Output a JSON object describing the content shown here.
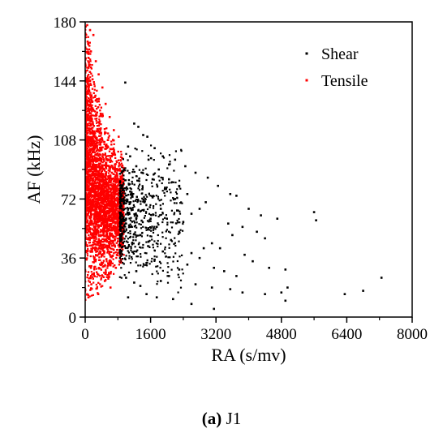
{
  "chart_data": {
    "type": "scatter",
    "title": "",
    "xlabel": "RA (s/mv)",
    "ylabel": "AF (kHz)",
    "xlim": [
      0,
      8000
    ],
    "ylim": [
      0,
      180
    ],
    "xticks": [
      "0",
      "1600",
      "3200",
      "4800",
      "6400",
      "8000"
    ],
    "yticks": [
      "0",
      "36",
      "72",
      "108",
      "144",
      "180"
    ],
    "grid": false,
    "legend_position": "top-right",
    "series": [
      {
        "name": "Shear",
        "color": "#000000",
        "points": [
          [
            980,
            143
          ],
          [
            1200,
            118
          ],
          [
            1300,
            116
          ],
          [
            1420,
            111
          ],
          [
            1520,
            110
          ],
          [
            1700,
            103
          ],
          [
            1900,
            98
          ],
          [
            2050,
            93
          ],
          [
            2200,
            96
          ],
          [
            2450,
            92
          ],
          [
            2700,
            88
          ],
          [
            3000,
            85
          ],
          [
            3250,
            80
          ],
          [
            3550,
            75
          ],
          [
            3700,
            74
          ],
          [
            4000,
            66
          ],
          [
            4300,
            62
          ],
          [
            4700,
            60
          ],
          [
            5600,
            64
          ],
          [
            5650,
            59
          ],
          [
            3500,
            57
          ],
          [
            3850,
            55
          ],
          [
            3600,
            50
          ],
          [
            4200,
            52
          ],
          [
            4400,
            48
          ],
          [
            3100,
            45
          ],
          [
            3300,
            42
          ],
          [
            3900,
            38
          ],
          [
            4100,
            34
          ],
          [
            4500,
            30
          ],
          [
            4900,
            29
          ],
          [
            3150,
            30
          ],
          [
            3400,
            28
          ],
          [
            3700,
            25
          ],
          [
            2900,
            42
          ],
          [
            2600,
            39
          ],
          [
            2800,
            36
          ],
          [
            2500,
            32
          ],
          [
            2300,
            29
          ],
          [
            2050,
            25
          ],
          [
            1850,
            22
          ],
          [
            2700,
            20
          ],
          [
            3100,
            18
          ],
          [
            3550,
            17
          ],
          [
            3850,
            15
          ],
          [
            4400,
            14
          ],
          [
            4800,
            15
          ],
          [
            4900,
            10
          ],
          [
            2150,
            11
          ],
          [
            1750,
            12
          ],
          [
            1500,
            14
          ],
          [
            1350,
            19
          ],
          [
            1200,
            21
          ],
          [
            1050,
            12
          ],
          [
            2600,
            8
          ],
          [
            3150,
            5
          ],
          [
            6350,
            14
          ],
          [
            6800,
            16
          ],
          [
            7250,
            24
          ],
          [
            4950,
            18
          ],
          [
            1000,
            24
          ],
          [
            1250,
            28
          ],
          [
            1500,
            33
          ],
          [
            1700,
            35
          ],
          [
            1900,
            40
          ],
          [
            2100,
            47
          ],
          [
            2300,
            52
          ],
          [
            2400,
            58
          ],
          [
            2600,
            63
          ],
          [
            2800,
            66
          ],
          [
            2950,
            70
          ],
          [
            2200,
            72
          ],
          [
            1950,
            78
          ],
          [
            1650,
            84
          ],
          [
            1400,
            88
          ],
          [
            1250,
            92
          ],
          [
            1100,
            98
          ],
          [
            1050,
            104
          ],
          [
            1300,
            65
          ],
          [
            1450,
            70
          ],
          [
            1600,
            60
          ],
          [
            1750,
            55
          ],
          [
            1850,
            66
          ],
          [
            2000,
            60
          ],
          [
            1150,
            45
          ],
          [
            1350,
            50
          ],
          [
            1550,
            46
          ],
          [
            1250,
            40
          ],
          [
            1100,
            55
          ],
          [
            1000,
            60
          ],
          [
            950,
            70
          ],
          [
            900,
            80
          ],
          [
            950,
            90
          ],
          [
            1150,
            75
          ],
          [
            1400,
            78
          ],
          [
            1650,
            73
          ],
          [
            2050,
            84
          ],
          [
            2300,
            80
          ],
          [
            1800,
            90
          ],
          [
            1550,
            96
          ],
          [
            2500,
            75
          ],
          [
            2250,
            65
          ]
        ]
      },
      {
        "name": "Tensile",
        "color": "#ff0000",
        "points": [
          [
            50,
            178
          ],
          [
            120,
            175
          ],
          [
            200,
            172
          ],
          [
            60,
            168
          ],
          [
            140,
            162
          ],
          [
            260,
            156
          ],
          [
            80,
            152
          ],
          [
            330,
            148
          ],
          [
            180,
            145
          ],
          [
            420,
            140
          ],
          [
            250,
            135
          ],
          [
            500,
            130
          ],
          [
            150,
            128
          ],
          [
            600,
            122
          ],
          [
            350,
            118
          ],
          [
            700,
            114
          ],
          [
            820,
            110
          ],
          [
            120,
            105
          ],
          [
            40,
            100
          ],
          [
            450,
            96
          ],
          [
            900,
            92
          ],
          [
            650,
            88
          ],
          [
            300,
            85
          ],
          [
            800,
            80
          ],
          [
            100,
            75
          ],
          [
            520,
            70
          ],
          [
            860,
            65
          ],
          [
            380,
            60
          ],
          [
            700,
            55
          ],
          [
            200,
            50
          ],
          [
            880,
            45
          ],
          [
            560,
            40
          ],
          [
            260,
            35
          ],
          [
            750,
            30
          ],
          [
            420,
            25
          ],
          [
            150,
            20
          ],
          [
            620,
            18
          ],
          [
            320,
            14
          ],
          [
            80,
            12
          ],
          [
            480,
            22
          ],
          [
            840,
            34
          ],
          [
            60,
            58
          ],
          [
            720,
            74
          ],
          [
            240,
            92
          ],
          [
            560,
            108
          ],
          [
            380,
            124
          ],
          [
            90,
            138
          ],
          [
            160,
            115
          ],
          [
            400,
            102
          ],
          [
            650,
            98
          ],
          [
            780,
            86
          ],
          [
            300,
            72
          ],
          [
            480,
            62
          ],
          [
            600,
            48
          ],
          [
            340,
            42
          ],
          [
            140,
            30
          ],
          [
            820,
            52
          ],
          [
            700,
            66
          ],
          [
            540,
            84
          ],
          [
            230,
            110
          ]
        ]
      }
    ],
    "dense_regions": [
      {
        "series": "Tensile",
        "x": [
          0,
          950
        ],
        "y": [
          8,
          178
        ],
        "envelope_y_top": [
          [
            0,
            178
          ],
          [
            100,
            172
          ],
          [
            200,
            150
          ],
          [
            300,
            138
          ],
          [
            400,
            128
          ],
          [
            500,
            118
          ],
          [
            600,
            112
          ],
          [
            700,
            108
          ],
          [
            800,
            104
          ],
          [
            900,
            100
          ],
          [
            950,
            96
          ]
        ],
        "envelope_y_bottom": [
          [
            0,
            8
          ],
          [
            100,
            12
          ],
          [
            200,
            13
          ],
          [
            300,
            14
          ],
          [
            400,
            16
          ],
          [
            500,
            18
          ],
          [
            600,
            20
          ],
          [
            700,
            25
          ],
          [
            800,
            30
          ],
          [
            900,
            34
          ],
          [
            950,
            36
          ]
        ],
        "count": 5500
      },
      {
        "series": "Shear",
        "x": [
          850,
          2400
        ],
        "y": [
          10,
          110
        ],
        "count": 700
      }
    ]
  },
  "caption": {
    "label": "(a)",
    "text": " J1"
  }
}
